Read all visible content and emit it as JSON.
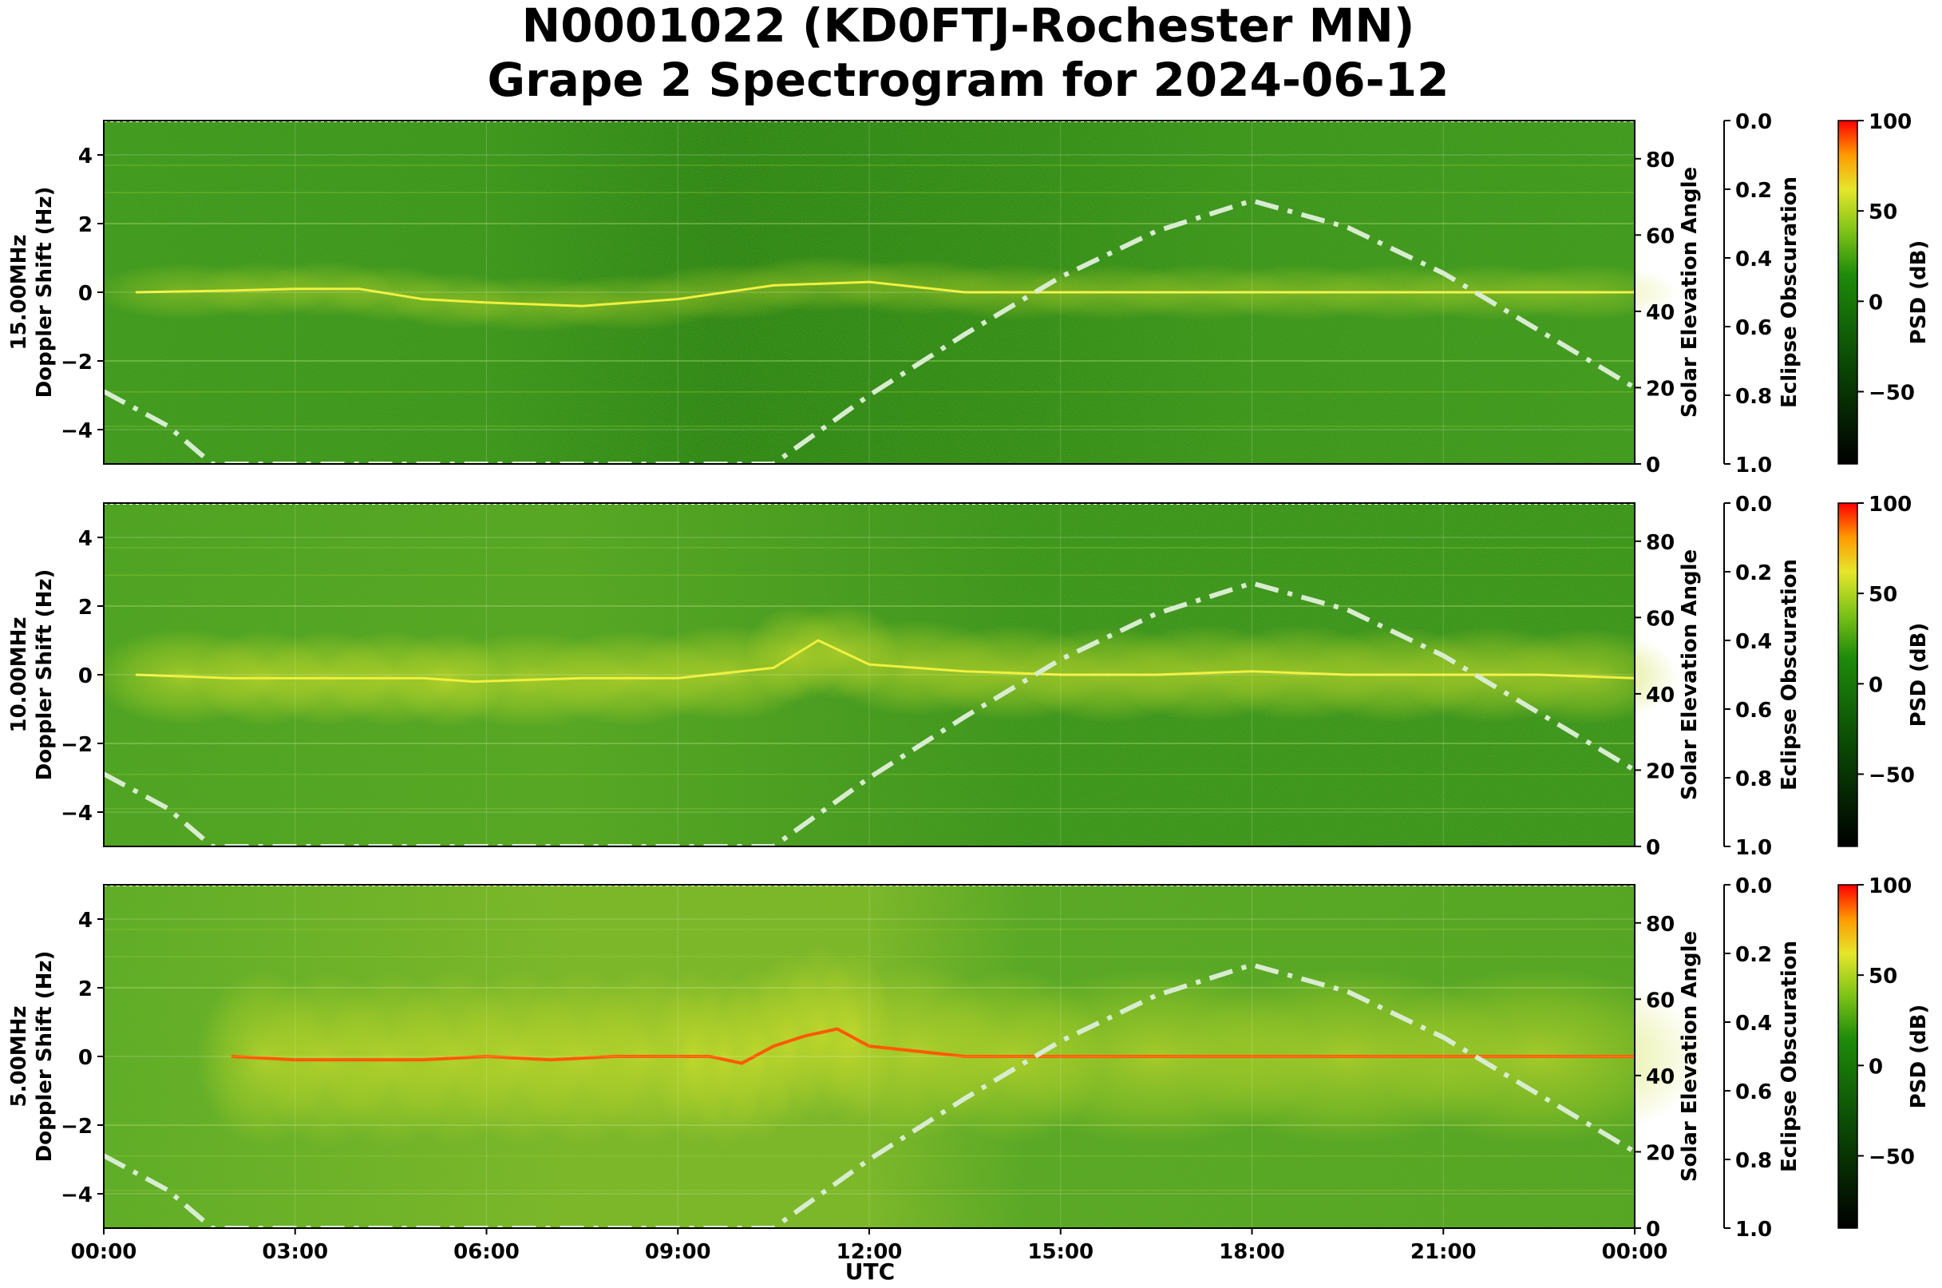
{
  "figure": {
    "title_line1": "N0001022 (KD0FTJ-Rochester MN)",
    "title_line2": "Grape 2 Spectrogram for 2024-06-12",
    "xlabel": "UTC",
    "x_ticks": [
      "00:00",
      "03:00",
      "06:00",
      "09:00",
      "12:00",
      "15:00",
      "18:00",
      "21:00",
      "00:00"
    ]
  },
  "colors": {
    "background_green": "#1e8a0a",
    "signal_yellow": "#e6e62a",
    "signal_red": "#ff2a00",
    "solar_curve": "#d8e8d0"
  },
  "chart_data": [
    {
      "type": "heatmap",
      "frequency_label": "15.00MHz",
      "ylabel": "Doppler Shift (Hz)",
      "ylim": [
        -5,
        5
      ],
      "y_ticks": [
        "4",
        "2",
        "0",
        "−2",
        "−4"
      ],
      "x_range_utc": [
        "00:00",
        "24:00"
      ],
      "right_axis_label": "Solar Elevation Angle",
      "right_axis_range": [
        0,
        90
      ],
      "right_axis_ticks": [
        "80",
        "60",
        "40",
        "20",
        "0"
      ],
      "eclipse_axis_label": "Eclipse Obscuration",
      "eclipse_range": [
        0.0,
        1.0
      ],
      "eclipse_ticks": [
        "0.0",
        "0.2",
        "0.4",
        "0.6",
        "0.8",
        "1.0"
      ],
      "colorbar_label": "PSD (dB)",
      "colorbar_range": [
        -90,
        100
      ],
      "colorbar_ticks": [
        "100",
        "50",
        "0",
        "−50"
      ],
      "doppler_trace": {
        "x_hours": [
          0.5,
          2,
          3,
          4,
          5,
          6,
          7.5,
          9,
          10.5,
          12,
          13.5,
          15,
          16.5,
          18,
          19.5,
          21,
          22.5,
          24
        ],
        "y_hz": [
          0,
          0.05,
          0.1,
          0.1,
          -0.2,
          -0.3,
          -0.4,
          -0.2,
          0.2,
          0.3,
          0,
          0,
          0,
          0,
          0,
          0,
          0,
          0
        ]
      },
      "solar_elevation": {
        "x_hours": [
          0,
          1,
          1.7,
          10.5,
          12,
          13.5,
          15,
          16.5,
          18,
          19.5,
          21,
          22.5,
          24
        ],
        "deg": [
          19,
          10,
          0,
          0,
          18,
          34,
          49,
          61,
          69,
          62,
          50,
          35,
          20
        ]
      }
    },
    {
      "type": "heatmap",
      "frequency_label": "10.00MHz",
      "ylabel": "Doppler Shift (Hz)",
      "ylim": [
        -5,
        5
      ],
      "y_ticks": [
        "4",
        "2",
        "0",
        "−2",
        "−4"
      ],
      "x_range_utc": [
        "00:00",
        "24:00"
      ],
      "right_axis_label": "Solar Elevation Angle",
      "right_axis_range": [
        0,
        90
      ],
      "right_axis_ticks": [
        "80",
        "60",
        "40",
        "20",
        "0"
      ],
      "eclipse_axis_label": "Eclipse Obscuration",
      "eclipse_range": [
        0.0,
        1.0
      ],
      "eclipse_ticks": [
        "0.0",
        "0.2",
        "0.4",
        "0.6",
        "0.8",
        "1.0"
      ],
      "colorbar_label": "PSD (dB)",
      "colorbar_range": [
        -90,
        100
      ],
      "colorbar_ticks": [
        "100",
        "50",
        "0",
        "−50"
      ],
      "doppler_trace": {
        "x_hours": [
          0.5,
          2,
          3,
          4,
          5,
          5.8,
          7.5,
          9,
          10.5,
          11.2,
          12,
          13.5,
          15,
          16.5,
          18,
          19.5,
          21,
          22.5,
          24
        ],
        "y_hz": [
          0,
          -0.1,
          -0.1,
          -0.1,
          -0.1,
          -0.2,
          -0.1,
          -0.1,
          0.2,
          1.0,
          0.3,
          0.1,
          0,
          0,
          0.1,
          0,
          0,
          0,
          -0.1
        ]
      },
      "solar_elevation": {
        "x_hours": [
          0,
          1,
          1.7,
          10.5,
          12,
          13.5,
          15,
          16.5,
          18,
          19.5,
          21,
          22.5,
          24
        ],
        "deg": [
          19,
          10,
          0,
          0,
          18,
          34,
          49,
          61,
          69,
          62,
          50,
          35,
          20
        ]
      }
    },
    {
      "type": "heatmap",
      "frequency_label": "5.00MHz",
      "ylabel": "Doppler Shift (Hz)",
      "ylim": [
        -5,
        5
      ],
      "y_ticks": [
        "4",
        "2",
        "0",
        "−2",
        "−4"
      ],
      "x_range_utc": [
        "00:00",
        "24:00"
      ],
      "right_axis_label": "Solar Elevation Angle",
      "right_axis_range": [
        0,
        90
      ],
      "right_axis_ticks": [
        "80",
        "60",
        "40",
        "20",
        "0"
      ],
      "eclipse_axis_label": "Eclipse Obscuration",
      "eclipse_range": [
        0.0,
        1.0
      ],
      "eclipse_ticks": [
        "0.0",
        "0.2",
        "0.4",
        "0.6",
        "0.8",
        "1.0"
      ],
      "colorbar_label": "PSD (dB)",
      "colorbar_range": [
        -90,
        100
      ],
      "colorbar_ticks": [
        "100",
        "50",
        "0",
        "−50"
      ],
      "doppler_trace": {
        "x_hours": [
          2,
          3,
          4,
          5,
          6,
          7,
          8,
          9,
          9.5,
          10,
          10.5,
          11,
          11.5,
          12,
          13.5,
          15,
          18,
          21,
          24
        ],
        "y_hz": [
          0,
          -0.1,
          -0.1,
          -0.1,
          0,
          -0.1,
          0,
          0,
          0,
          -0.2,
          0.3,
          0.6,
          0.8,
          0.3,
          0,
          0,
          0,
          0,
          0
        ]
      },
      "solar_elevation": {
        "x_hours": [
          0,
          1,
          1.7,
          10.5,
          12,
          13.5,
          15,
          16.5,
          18,
          19.5,
          21,
          22.5,
          24
        ],
        "deg": [
          19,
          10,
          0,
          0,
          18,
          34,
          49,
          61,
          69,
          62,
          50,
          35,
          20
        ]
      }
    }
  ]
}
